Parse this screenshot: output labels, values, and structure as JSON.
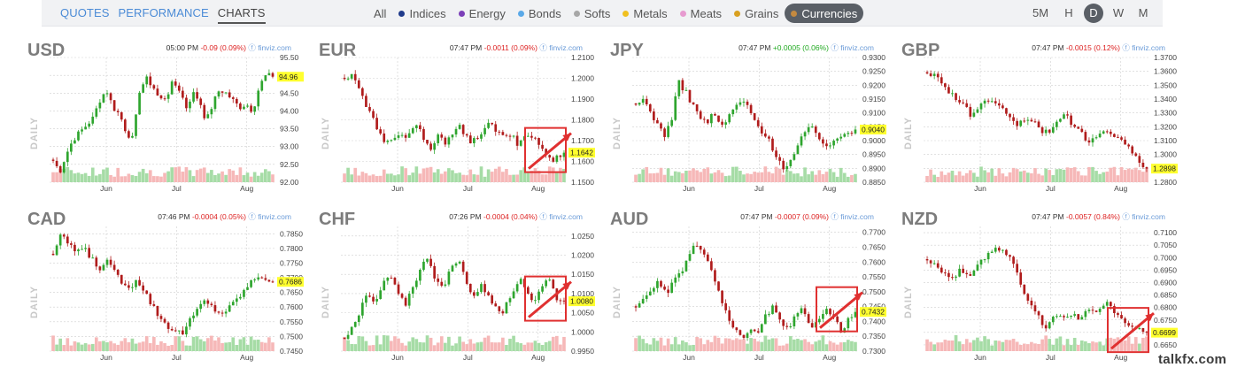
{
  "nav": {
    "tabs": [
      {
        "label": "QUOTES",
        "active": false
      },
      {
        "label": "PERFORMANCE",
        "active": false
      },
      {
        "label": "CHARTS",
        "active": true
      }
    ],
    "filters": [
      {
        "label": "All",
        "color": "",
        "active": false
      },
      {
        "label": "Indices",
        "color": "#1f3a8a",
        "active": false
      },
      {
        "label": "Energy",
        "color": "#7b3fb8",
        "active": false
      },
      {
        "label": "Bonds",
        "color": "#5aa9e8",
        "active": false
      },
      {
        "label": "Softs",
        "color": "#a7a7a7",
        "active": false
      },
      {
        "label": "Metals",
        "color": "#f0c020",
        "active": false
      },
      {
        "label": "Meats",
        "color": "#e79bd0",
        "active": false
      },
      {
        "label": "Grains",
        "color": "#d9a020",
        "active": false
      },
      {
        "label": "Currencies",
        "color": "#c58a40",
        "active": true
      }
    ],
    "periods": [
      {
        "label": "5M",
        "active": false
      },
      {
        "label": "H",
        "active": false
      },
      {
        "label": "D",
        "active": true
      },
      {
        "label": "W",
        "active": false
      },
      {
        "label": "M",
        "active": false
      }
    ]
  },
  "daily_label": "DAILY",
  "watermark": "talkfx.com",
  "colors": {
    "up": "#2ea52e",
    "down": "#b01c1c",
    "vol_up": "#a6dca6",
    "vol_down": "#f6b8b8",
    "grid": "#cfcfcf",
    "last_price": "#ffff2e",
    "annotation": "#e03030"
  },
  "chart_data": [
    {
      "type": "candlestick",
      "symbol": "USD",
      "time": "05:00 PM",
      "change": "-0.09 (0.09%)",
      "direction": "down",
      "brand": "finviz.com",
      "yticks": [
        "95.50",
        "95.00",
        "94.50",
        "94.00",
        "93.50",
        "93.00",
        "92.50",
        "92.00"
      ],
      "ylim": [
        92.0,
        95.5
      ],
      "xticks": [
        "Jun",
        "Jul",
        "Aug"
      ],
      "last_label": "94.96",
      "last": 94.96,
      "path": [
        92.6,
        92.3,
        92.8,
        93.2,
        93.4,
        93.6,
        93.8,
        94.3,
        94.6,
        94.1,
        93.9,
        93.4,
        93.2,
        94.6,
        94.9,
        94.7,
        94.3,
        94.4,
        94.8,
        94.6,
        94.1,
        94.5,
        94.3,
        93.7,
        94.2,
        94.6,
        94.5,
        94.3,
        94.1,
        94.2,
        94.0,
        94.7,
        95.0,
        94.96
      ],
      "annotation": null
    },
    {
      "type": "candlestick",
      "symbol": "EUR",
      "time": "07:47 PM",
      "change": "-0.0011 (0.09%)",
      "direction": "down",
      "brand": "finviz.com",
      "yticks": [
        "1.2100",
        "1.2000",
        "1.1900",
        "1.1800",
        "1.1700",
        "1.1600",
        "1.1500"
      ],
      "ylim": [
        1.15,
        1.21
      ],
      "xticks": [
        "Jun",
        "Jul",
        "Aug"
      ],
      "last_label": "1.1642",
      "last": 1.1642,
      "path": [
        1.199,
        1.203,
        1.197,
        1.188,
        1.182,
        1.176,
        1.168,
        1.17,
        1.174,
        1.171,
        1.175,
        1.177,
        1.169,
        1.166,
        1.172,
        1.169,
        1.173,
        1.178,
        1.173,
        1.168,
        1.172,
        1.176,
        1.178,
        1.174,
        1.171,
        1.173,
        1.168,
        1.172,
        1.173,
        1.169,
        1.165,
        1.16,
        1.163,
        1.1642
      ],
      "annotation": "box-arrow"
    },
    {
      "type": "candlestick",
      "symbol": "JPY",
      "time": "07:47 PM",
      "change": "+0.0005 (0.06%)",
      "direction": "up",
      "brand": "finviz.com",
      "yticks": [
        "0.9300",
        "0.9250",
        "0.9200",
        "0.9150",
        "0.9100",
        "0.9050",
        "0.9000",
        "0.8950",
        "0.8900",
        "0.8850"
      ],
      "ylim": [
        0.885,
        0.93
      ],
      "xticks": [
        "Jun",
        "Jul",
        "Aug"
      ],
      "last_label": "0.9040",
      "last": 0.904,
      "path": [
        0.912,
        0.915,
        0.911,
        0.906,
        0.902,
        0.907,
        0.921,
        0.918,
        0.913,
        0.909,
        0.906,
        0.91,
        0.905,
        0.908,
        0.912,
        0.915,
        0.911,
        0.906,
        0.903,
        0.899,
        0.894,
        0.89,
        0.893,
        0.899,
        0.903,
        0.905,
        0.901,
        0.898,
        0.899,
        0.902,
        0.903,
        0.904
      ],
      "annotation": null
    },
    {
      "type": "candlestick",
      "symbol": "GBP",
      "time": "07:47 PM",
      "change": "-0.0015 (0.12%)",
      "direction": "down",
      "brand": "finviz.com",
      "yticks": [
        "1.3700",
        "1.3600",
        "1.3500",
        "1.3400",
        "1.3300",
        "1.3200",
        "1.3100",
        "1.3000",
        "1.2900",
        "1.2800"
      ],
      "ylim": [
        1.28,
        1.37
      ],
      "xticks": [
        "Jun",
        "Jul",
        "Aug"
      ],
      "last_label": "1.2898",
      "last": 1.2898,
      "path": [
        1.36,
        1.357,
        1.352,
        1.346,
        1.34,
        1.336,
        1.328,
        1.333,
        1.338,
        1.336,
        1.333,
        1.33,
        1.321,
        1.324,
        1.327,
        1.32,
        1.315,
        1.319,
        1.324,
        1.328,
        1.321,
        1.317,
        1.309,
        1.312,
        1.316,
        1.313,
        1.315,
        1.308,
        1.3,
        1.295,
        1.2898
      ],
      "annotation": null
    },
    {
      "type": "candlestick",
      "symbol": "CAD",
      "time": "07:46 PM",
      "change": "-0.0004 (0.05%)",
      "direction": "down",
      "brand": "finviz.com",
      "yticks": [
        "0.7850",
        "0.7800",
        "0.7750",
        "0.7700",
        "0.7650",
        "0.7600",
        "0.7550",
        "0.7500",
        "0.7450"
      ],
      "ylim": [
        0.745,
        0.7875
      ],
      "xticks": [
        "Jun",
        "Jul",
        "Aug"
      ],
      "last_label": "0.7686",
      "last": 0.7686,
      "path": [
        0.778,
        0.784,
        0.782,
        0.779,
        0.78,
        0.777,
        0.773,
        0.776,
        0.772,
        0.769,
        0.766,
        0.77,
        0.766,
        0.761,
        0.757,
        0.754,
        0.752,
        0.751,
        0.755,
        0.759,
        0.762,
        0.76,
        0.758,
        0.759,
        0.762,
        0.765,
        0.768,
        0.771,
        0.77,
        0.7686
      ],
      "annotation": null
    },
    {
      "type": "candlestick",
      "symbol": "CHF",
      "time": "07:26 PM",
      "change": "-0.0004 (0.04%)",
      "direction": "down",
      "brand": "finviz.com",
      "yticks": [
        "1.0250",
        "1.0200",
        "1.0150",
        "1.0100",
        "1.0050",
        "1.0000",
        "0.9950"
      ],
      "ylim": [
        0.995,
        1.0275
      ],
      "xticks": [
        "Jun",
        "Jul",
        "Aug"
      ],
      "last_label": "1.0080",
      "last": 1.008,
      "path": [
        0.998,
        1.002,
        1.005,
        1.01,
        1.007,
        1.012,
        1.015,
        1.01,
        1.007,
        1.012,
        1.016,
        1.02,
        1.014,
        1.011,
        1.016,
        1.019,
        1.014,
        1.009,
        1.012,
        1.01,
        1.006,
        1.005,
        1.01,
        1.014,
        1.011,
        1.008,
        1.012,
        1.014,
        1.009,
        1.008
      ],
      "annotation": "box-arrow"
    },
    {
      "type": "candlestick",
      "symbol": "AUD",
      "time": "07:47 PM",
      "change": "-0.0007 (0.09%)",
      "direction": "down",
      "brand": "finviz.com",
      "yticks": [
        "0.7700",
        "0.7650",
        "0.7600",
        "0.7550",
        "0.7500",
        "0.7450",
        "0.7400",
        "0.7350",
        "0.7300"
      ],
      "ylim": [
        0.73,
        0.772
      ],
      "xticks": [
        "Jun",
        "Jul",
        "Aug"
      ],
      "last_label": "0.7432",
      "last": 0.7432,
      "path": [
        0.744,
        0.748,
        0.751,
        0.753,
        0.749,
        0.753,
        0.757,
        0.762,
        0.766,
        0.763,
        0.757,
        0.749,
        0.742,
        0.737,
        0.734,
        0.738,
        0.735,
        0.741,
        0.745,
        0.74,
        0.737,
        0.741,
        0.744,
        0.738,
        0.741,
        0.744,
        0.742,
        0.737,
        0.74,
        0.7432
      ],
      "annotation": "box-arrow"
    },
    {
      "type": "candlestick",
      "symbol": "NZD",
      "time": "07:47 PM",
      "change": "-0.0057 (0.84%)",
      "direction": "down",
      "brand": "finviz.com",
      "yticks": [
        "0.7100",
        "0.7050",
        "0.7000",
        "0.6950",
        "0.6900",
        "0.6850",
        "0.6800",
        "0.6750",
        "0.6700",
        "0.6650"
      ],
      "ylim": [
        0.6625,
        0.7125
      ],
      "xticks": [
        "Jun",
        "Jul",
        "Aug"
      ],
      "last_label": "0.6699",
      "last": 0.6699,
      "path": [
        0.7,
        0.697,
        0.694,
        0.692,
        0.695,
        0.691,
        0.698,
        0.701,
        0.704,
        0.703,
        0.699,
        0.69,
        0.682,
        0.677,
        0.672,
        0.678,
        0.675,
        0.677,
        0.676,
        0.679,
        0.678,
        0.682,
        0.679,
        0.676,
        0.673,
        0.671,
        0.6699
      ],
      "annotation": "box-arrow"
    }
  ]
}
